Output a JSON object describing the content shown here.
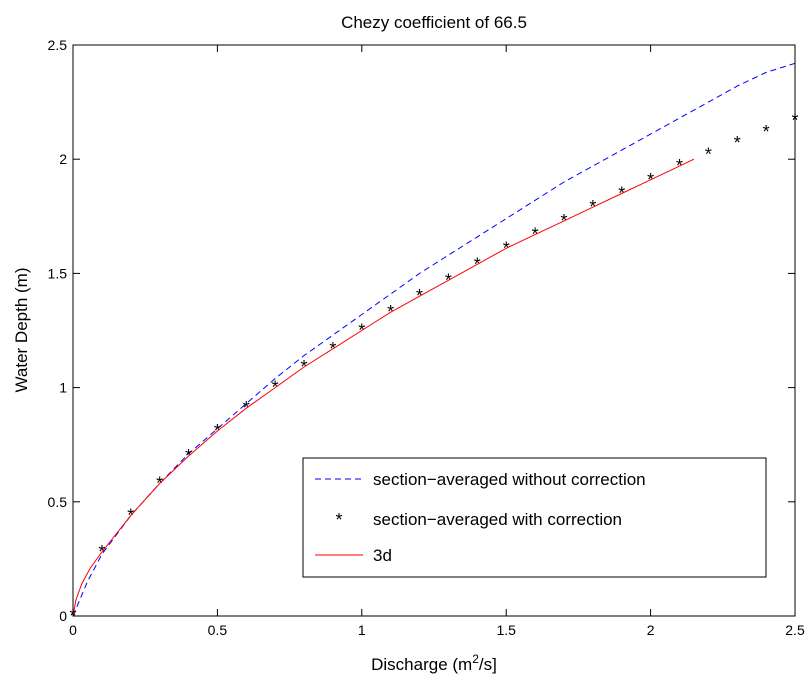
{
  "chart_data": {
    "type": "line",
    "title": "Chezy coefficient of 66.5",
    "xlabel": {
      "pre": "Discharge (m",
      "sup": "2",
      "post": "/s]"
    },
    "ylabel": "Water Depth (m)",
    "xlim": [
      0,
      2.5
    ],
    "ylim": [
      0,
      2.5
    ],
    "xticks": [
      "0",
      "0.5",
      "1",
      "1.5",
      "2",
      "2.5"
    ],
    "yticks": [
      "0",
      "0.5",
      "1",
      "1.5",
      "2",
      "2.5"
    ],
    "grid": false,
    "legend_position": "lower-right",
    "series": [
      {
        "name": "section−averaged without correction",
        "style": "dashed",
        "color": "#0000ff",
        "x": [
          0,
          0.05,
          0.1,
          0.2,
          0.3,
          0.4,
          0.5,
          0.6,
          0.7,
          0.8,
          0.9,
          1.0,
          1.1,
          1.2,
          1.3,
          1.4,
          1.5,
          1.6,
          1.7,
          1.8,
          1.9,
          2.0,
          2.1,
          2.2,
          2.3,
          2.4,
          2.5
        ],
        "y": [
          0,
          0.15,
          0.27,
          0.44,
          0.58,
          0.71,
          0.82,
          0.93,
          1.04,
          1.14,
          1.23,
          1.32,
          1.41,
          1.5,
          1.58,
          1.66,
          1.74,
          1.82,
          1.9,
          1.97,
          2.04,
          2.11,
          2.18,
          2.25,
          2.32,
          2.38,
          2.42
        ]
      },
      {
        "name": "section−averaged with correction",
        "style": "markers",
        "marker": "*",
        "color": "#000000",
        "x": [
          0,
          0.1,
          0.2,
          0.3,
          0.4,
          0.5,
          0.6,
          0.7,
          0.8,
          0.9,
          1.0,
          1.1,
          1.2,
          1.3,
          1.4,
          1.5,
          1.6,
          1.7,
          1.8,
          1.9,
          2.0,
          2.1,
          2.2,
          2.3,
          2.4,
          2.5
        ],
        "y": [
          0,
          0.28,
          0.44,
          0.58,
          0.7,
          0.81,
          0.91,
          1.0,
          1.09,
          1.17,
          1.25,
          1.33,
          1.4,
          1.47,
          1.54,
          1.61,
          1.67,
          1.73,
          1.79,
          1.85,
          1.91,
          1.97,
          2.02,
          2.07,
          2.12,
          2.17
        ]
      },
      {
        "name": "3d",
        "style": "solid",
        "color": "#ff0000",
        "x": [
          0,
          0.01,
          0.03,
          0.06,
          0.1,
          0.2,
          0.3,
          0.4,
          0.5,
          0.6,
          0.7,
          0.8,
          0.9,
          1.0,
          1.1,
          1.2,
          1.3,
          1.4,
          1.5,
          1.6,
          1.7,
          1.8,
          1.9,
          2.0,
          2.1,
          2.15
        ],
        "y": [
          0,
          0.07,
          0.14,
          0.21,
          0.28,
          0.44,
          0.58,
          0.7,
          0.81,
          0.91,
          1.0,
          1.09,
          1.17,
          1.25,
          1.33,
          1.4,
          1.47,
          1.54,
          1.61,
          1.67,
          1.73,
          1.79,
          1.85,
          1.91,
          1.97,
          2.0
        ]
      }
    ]
  }
}
